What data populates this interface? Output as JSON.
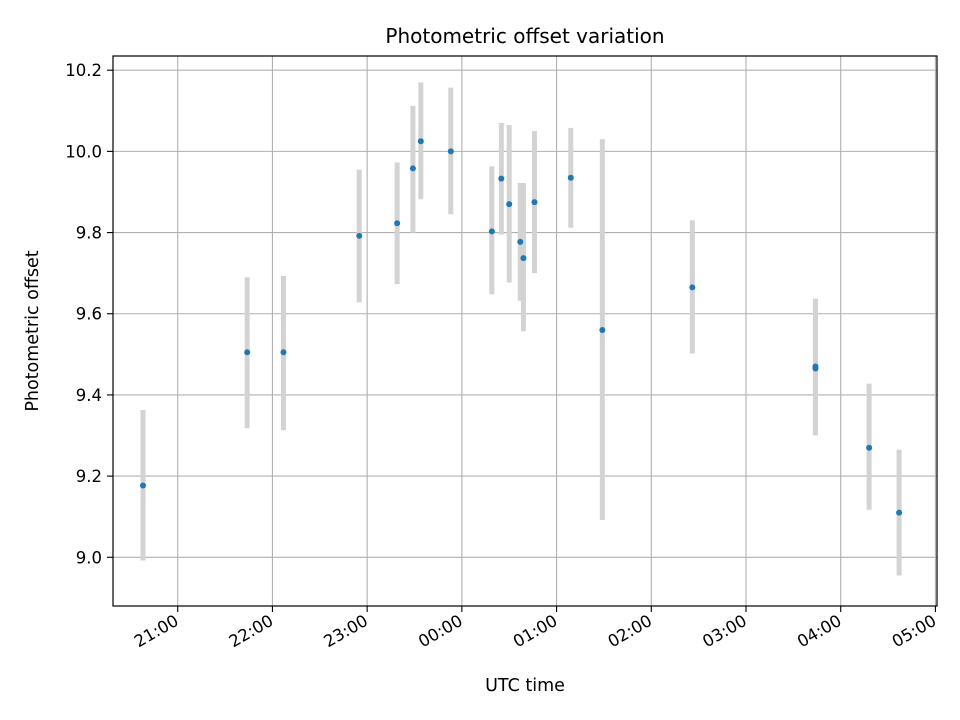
{
  "chart_data": {
    "type": "scatter",
    "title": "Photometric offset variation",
    "xlabel": "UTC time",
    "ylabel": "Photometric offset",
    "x_axis": {
      "start": "20:00",
      "end": "05:00",
      "min": "20:19",
      "max": "05:01",
      "ticks": [
        "21:00",
        "22:00",
        "23:00",
        "00:00",
        "01:00",
        "02:00",
        "03:00",
        "04:00",
        "05:00"
      ]
    },
    "y_axis": {
      "min": 8.88,
      "max": 10.235,
      "ticks": [
        "9.0",
        "9.2",
        "9.4",
        "9.6",
        "9.8",
        "10.0",
        "10.2"
      ]
    },
    "grid": true,
    "colors": {
      "points": "#1f77b4",
      "errorbars": "#d3d3d3",
      "grid": "#b0b0b0"
    },
    "points": [
      {
        "x": "20:38",
        "y": 9.177,
        "lo": 8.992,
        "hi": 9.363
      },
      {
        "x": "21:44",
        "y": 9.505,
        "lo": 9.318,
        "hi": 9.69
      },
      {
        "x": "22:07",
        "y": 9.505,
        "lo": 9.313,
        "hi": 9.693
      },
      {
        "x": "22:55",
        "y": 9.792,
        "lo": 9.628,
        "hi": 9.955
      },
      {
        "x": "23:19",
        "y": 9.823,
        "lo": 9.673,
        "hi": 9.973
      },
      {
        "x": "23:29",
        "y": 9.958,
        "lo": 9.8,
        "hi": 10.112
      },
      {
        "x": "23:34",
        "y": 10.025,
        "lo": 9.882,
        "hi": 10.17
      },
      {
        "x": "23:53",
        "y": 10.0,
        "lo": 9.845,
        "hi": 10.157
      },
      {
        "x": "00:19",
        "y": 9.803,
        "lo": 9.648,
        "hi": 9.963
      },
      {
        "x": "00:25",
        "y": 9.933,
        "lo": 9.795,
        "hi": 10.07
      },
      {
        "x": "00:30",
        "y": 9.87,
        "lo": 9.677,
        "hi": 10.065
      },
      {
        "x": "00:37",
        "y": 9.777,
        "lo": 9.632,
        "hi": 9.922
      },
      {
        "x": "00:39",
        "y": 9.737,
        "lo": 9.557,
        "hi": 9.922
      },
      {
        "x": "00:46",
        "y": 9.875,
        "lo": 9.7,
        "hi": 10.05
      },
      {
        "x": "01:09",
        "y": 9.935,
        "lo": 9.812,
        "hi": 10.058
      },
      {
        "x": "01:29",
        "y": 9.56,
        "lo": 9.092,
        "hi": 10.03
      },
      {
        "x": "02:26",
        "y": 9.665,
        "lo": 9.502,
        "hi": 9.83
      },
      {
        "x": "03:44",
        "y": 9.47,
        "lo": 9.3,
        "hi": 9.637
      },
      {
        "x": "03:44",
        "y": 9.465,
        "lo": 9.3,
        "hi": 9.637
      },
      {
        "x": "04:18",
        "y": 9.27,
        "lo": 9.117,
        "hi": 9.428
      },
      {
        "x": "04:37",
        "y": 9.11,
        "lo": 8.955,
        "hi": 9.265
      }
    ]
  }
}
